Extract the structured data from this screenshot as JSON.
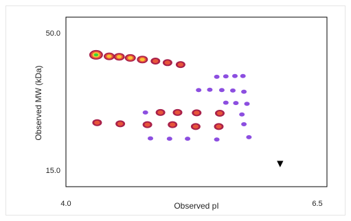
{
  "chart_data": {
    "type": "scatter",
    "title": "",
    "xlabel": "Observed pI",
    "ylabel": "Observed MW (kDa)",
    "xlim": [
      4.0,
      6.5
    ],
    "ylim": [
      15.0,
      50.0
    ],
    "x_ticks": [
      "4.0",
      "6.5"
    ],
    "y_ticks": [
      "50.0",
      "15.0"
    ],
    "grid": false,
    "legend": "none",
    "marker_annotation": {
      "symbol": "▼",
      "x": 6.13,
      "y": 17.0
    },
    "colors": {
      "high": "#39d63a",
      "medium_high": "#f7c233",
      "medium": "#e8543a",
      "low": "#a8204a",
      "faint": "#8c4ee0"
    },
    "spots": [
      {
        "x": 4.3,
        "y": 44.6,
        "intensity": "high"
      },
      {
        "x": 4.43,
        "y": 44.2,
        "intensity": "medium_high"
      },
      {
        "x": 4.53,
        "y": 44.1,
        "intensity": "medium_high"
      },
      {
        "x": 4.64,
        "y": 43.8,
        "intensity": "medium_high"
      },
      {
        "x": 4.76,
        "y": 43.4,
        "intensity": "medium_high"
      },
      {
        "x": 4.89,
        "y": 43.0,
        "intensity": "medium"
      },
      {
        "x": 5.01,
        "y": 42.6,
        "intensity": "medium"
      },
      {
        "x": 5.14,
        "y": 42.1,
        "intensity": "medium"
      },
      {
        "x": 5.5,
        "y": 39.0,
        "intensity": "faint"
      },
      {
        "x": 5.59,
        "y": 39.1,
        "intensity": "faint"
      },
      {
        "x": 5.68,
        "y": 39.2,
        "intensity": "faint"
      },
      {
        "x": 5.76,
        "y": 39.2,
        "intensity": "faint"
      },
      {
        "x": 5.32,
        "y": 35.6,
        "intensity": "faint"
      },
      {
        "x": 5.43,
        "y": 35.7,
        "intensity": "faint"
      },
      {
        "x": 5.55,
        "y": 35.6,
        "intensity": "faint"
      },
      {
        "x": 5.66,
        "y": 35.5,
        "intensity": "faint"
      },
      {
        "x": 5.77,
        "y": 35.2,
        "intensity": "faint"
      },
      {
        "x": 5.59,
        "y": 32.4,
        "intensity": "faint"
      },
      {
        "x": 5.69,
        "y": 32.3,
        "intensity": "faint"
      },
      {
        "x": 5.8,
        "y": 32.1,
        "intensity": "faint"
      },
      {
        "x": 4.79,
        "y": 29.9,
        "intensity": "faint"
      },
      {
        "x": 4.94,
        "y": 29.9,
        "intensity": "medium"
      },
      {
        "x": 5.11,
        "y": 29.9,
        "intensity": "medium"
      },
      {
        "x": 5.3,
        "y": 29.8,
        "intensity": "medium"
      },
      {
        "x": 5.53,
        "y": 29.7,
        "intensity": "medium"
      },
      {
        "x": 5.75,
        "y": 29.4,
        "intensity": "faint"
      },
      {
        "x": 4.31,
        "y": 27.3,
        "intensity": "medium"
      },
      {
        "x": 4.54,
        "y": 27.0,
        "intensity": "medium"
      },
      {
        "x": 4.81,
        "y": 26.8,
        "intensity": "medium"
      },
      {
        "x": 5.06,
        "y": 26.8,
        "intensity": "medium"
      },
      {
        "x": 5.29,
        "y": 26.3,
        "intensity": "medium"
      },
      {
        "x": 5.52,
        "y": 26.3,
        "intensity": "medium"
      },
      {
        "x": 5.77,
        "y": 26.9,
        "intensity": "faint"
      },
      {
        "x": 4.84,
        "y": 23.3,
        "intensity": "faint"
      },
      {
        "x": 5.03,
        "y": 23.2,
        "intensity": "faint"
      },
      {
        "x": 5.21,
        "y": 23.2,
        "intensity": "faint"
      },
      {
        "x": 5.5,
        "y": 23.0,
        "intensity": "faint"
      },
      {
        "x": 5.82,
        "y": 23.6,
        "intensity": "faint"
      }
    ]
  }
}
